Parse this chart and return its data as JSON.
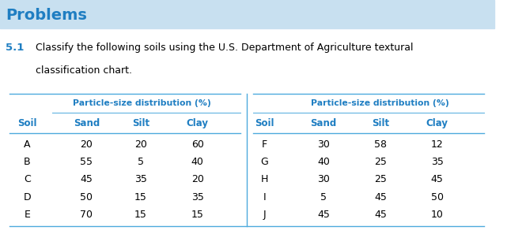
{
  "title": "Problems",
  "title_color": "#1F7EC2",
  "title_bg_color": "#C8E0F0",
  "problem_number": "5.1",
  "problem_number_color": "#1F7EC2",
  "problem_text_line1": "Classify the following soils using the U.S. Department of Agriculture textural",
  "problem_text_line2": "classification chart.",
  "header_span": "Particle-size distribution (%)",
  "header_span_color": "#1F7EC2",
  "col_headers": [
    "Soil",
    "Sand",
    "Silt",
    "Clay"
  ],
  "col_headers_color": "#1F7EC2",
  "left_data": [
    [
      "A",
      "20",
      "20",
      "60"
    ],
    [
      "B",
      "55",
      "5",
      "40"
    ],
    [
      "C",
      "45",
      "35",
      "20"
    ],
    [
      "D",
      "50",
      "15",
      "35"
    ],
    [
      "E",
      "70",
      "15",
      "15"
    ]
  ],
  "right_data": [
    [
      "F",
      "30",
      "58",
      "12"
    ],
    [
      "G",
      "40",
      "25",
      "35"
    ],
    [
      "H",
      "30",
      "25",
      "45"
    ],
    [
      "I",
      "5",
      "45",
      "50"
    ],
    [
      "J",
      "45",
      "45",
      "10"
    ]
  ],
  "bg_color": "#FFFFFF",
  "text_color": "#000000",
  "line_color": "#4DAADD",
  "divider_color": "#4DAADD"
}
